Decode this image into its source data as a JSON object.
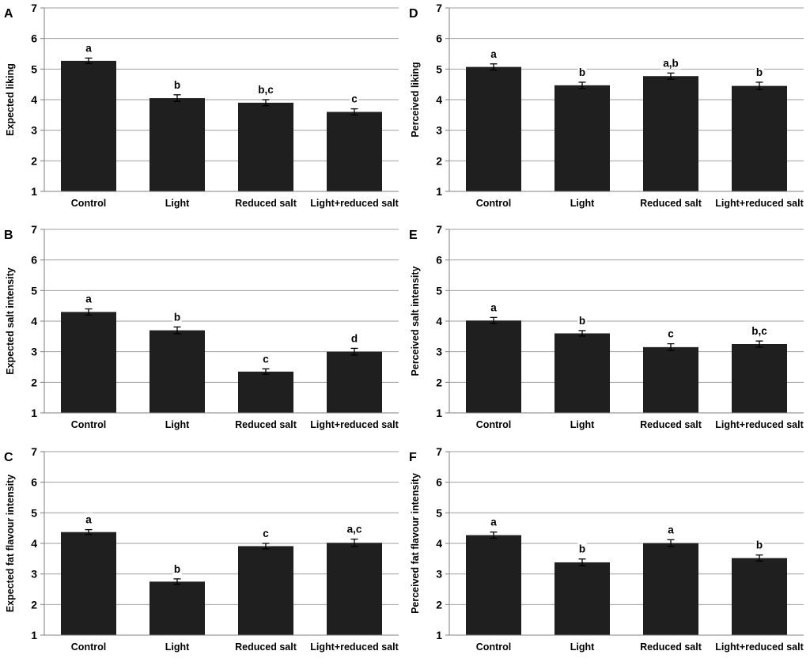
{
  "figure": {
    "background": "#ffffff",
    "bar_color": "#1f1f1f",
    "grid_color": "#9e9e9e",
    "axis_color": "#808080",
    "error_bar_color": "#000000",
    "text_color": "#000000",
    "panel_order_displayed": [
      "A",
      "D",
      "B",
      "E",
      "C",
      "F"
    ]
  },
  "chart_data": [
    {
      "type": "bar",
      "panel": "A",
      "ylabel": "Expected liking",
      "xlabel": "",
      "categories": [
        "Control",
        "Light",
        "Reduced salt",
        "Light+reduced salt"
      ],
      "values": [
        5.27,
        4.05,
        3.9,
        3.6
      ],
      "error_bars": [
        0.09,
        0.11,
        0.1,
        0.1
      ],
      "sig_labels": [
        "a",
        "b",
        "b,c",
        "c"
      ],
      "ylim": [
        1,
        7
      ],
      "yticks": [
        1,
        2,
        3,
        4,
        5,
        6,
        7
      ],
      "grid": true,
      "legend": "none"
    },
    {
      "type": "bar",
      "panel": "B",
      "ylabel": "Expected salt intensity",
      "xlabel": "",
      "categories": [
        "Control",
        "Light",
        "Reduced salt",
        "Light+reduced salt"
      ],
      "values": [
        4.3,
        3.7,
        2.35,
        3.0
      ],
      "error_bars": [
        0.1,
        0.11,
        0.09,
        0.11
      ],
      "sig_labels": [
        "a",
        "b",
        "c",
        "d"
      ],
      "ylim": [
        1,
        7
      ],
      "yticks": [
        1,
        2,
        3,
        4,
        5,
        6,
        7
      ],
      "grid": true,
      "legend": "none"
    },
    {
      "type": "bar",
      "panel": "C",
      "ylabel": "Expected fat flavour intensity",
      "xlabel": "",
      "categories": [
        "Control",
        "Light",
        "Reduced salt",
        "Light+reduced salt"
      ],
      "values": [
        4.37,
        2.75,
        3.91,
        4.02
      ],
      "error_bars": [
        0.08,
        0.09,
        0.09,
        0.12
      ],
      "sig_labels": [
        "a",
        "b",
        "c",
        "a,c"
      ],
      "ylim": [
        1,
        7
      ],
      "yticks": [
        1,
        2,
        3,
        4,
        5,
        6,
        7
      ],
      "grid": true,
      "legend": "none"
    },
    {
      "type": "bar",
      "panel": "D",
      "ylabel": "Perceived liking",
      "xlabel": "",
      "categories": [
        "Control",
        "Light",
        "Reduced salt",
        "Light+reduced salt"
      ],
      "values": [
        5.07,
        4.47,
        4.77,
        4.45
      ],
      "error_bars": [
        0.1,
        0.1,
        0.1,
        0.12
      ],
      "sig_labels": [
        "a",
        "b",
        "a,b",
        "b"
      ],
      "ylim": [
        1,
        7
      ],
      "yticks": [
        1,
        2,
        3,
        4,
        5,
        6,
        7
      ],
      "grid": true,
      "legend": "none"
    },
    {
      "type": "bar",
      "panel": "E",
      "ylabel": "Perceived salt intensity",
      "xlabel": "",
      "categories": [
        "Control",
        "Light",
        "Reduced salt",
        "Light+reduced salt"
      ],
      "values": [
        4.02,
        3.6,
        3.15,
        3.25
      ],
      "error_bars": [
        0.1,
        0.09,
        0.11,
        0.1
      ],
      "sig_labels": [
        "a",
        "b",
        "c",
        "b,c"
      ],
      "ylim": [
        1,
        7
      ],
      "yticks": [
        1,
        2,
        3,
        4,
        5,
        6,
        7
      ],
      "grid": true,
      "legend": "none"
    },
    {
      "type": "bar",
      "panel": "F",
      "ylabel": "Perceived fat flavour intensity",
      "xlabel": "",
      "categories": [
        "Control",
        "Light",
        "Reduced salt",
        "Light+reduced salt"
      ],
      "values": [
        4.27,
        3.38,
        4.01,
        3.52
      ],
      "error_bars": [
        0.1,
        0.11,
        0.11,
        0.1
      ],
      "sig_labels": [
        "a",
        "b",
        "a",
        "b"
      ],
      "ylim": [
        1,
        7
      ],
      "yticks": [
        1,
        2,
        3,
        4,
        5,
        6,
        7
      ],
      "grid": true,
      "legend": "none"
    }
  ]
}
